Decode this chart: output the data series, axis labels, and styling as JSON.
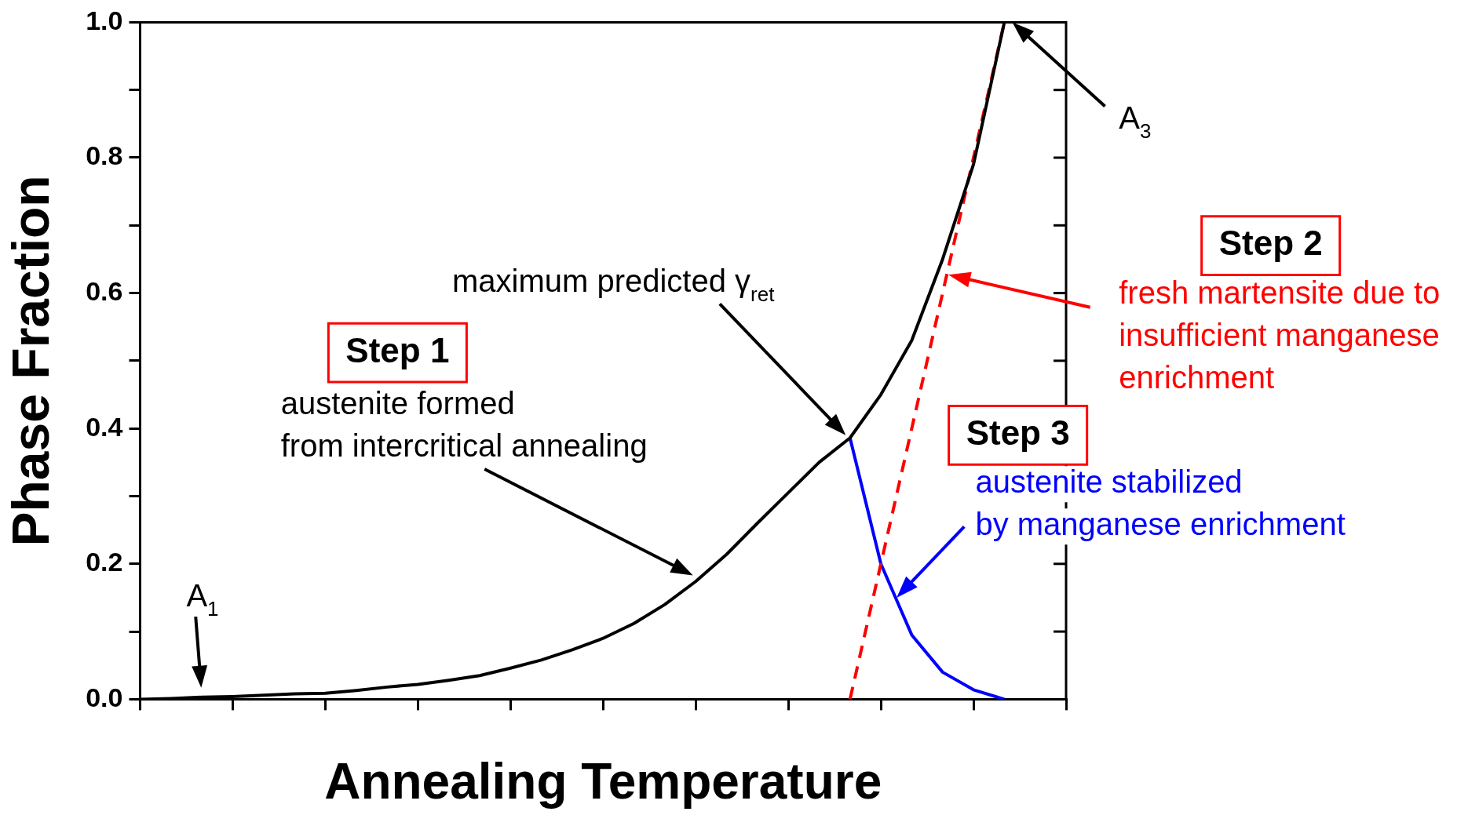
{
  "chart_data": {
    "type": "line",
    "xlabel": "Annealing Temperature",
    "ylabel": "Phase Fraction",
    "categories": [
      null,
      null,
      null,
      null,
      null,
      null,
      null,
      null,
      null,
      null,
      null,
      null,
      null,
      null,
      null,
      null,
      null,
      null,
      null,
      null,
      null,
      null,
      null,
      null,
      null,
      null,
      null,
      null,
      null,
      null,
      null
    ],
    "ylim": [
      0,
      1
    ],
    "yticks": [
      {
        "value": 0,
        "label": "0.0"
      },
      {
        "value": 0.1,
        "label": null
      },
      {
        "value": 0.2,
        "label": "0.2"
      },
      {
        "value": 0.3,
        "label": null
      },
      {
        "value": 0.4,
        "label": "0.4"
      },
      {
        "value": 0.5,
        "label": null
      },
      {
        "value": 0.6,
        "label": "0.6"
      },
      {
        "value": 0.7,
        "label": null
      },
      {
        "value": 0.8,
        "label": "0.8"
      },
      {
        "value": 0.9,
        "label": null
      },
      {
        "value": 1,
        "label": "1.0"
      }
    ],
    "marker": "none",
    "legend": false,
    "series": [
      {
        "color": "#000000",
        "line_style": "solid",
        "values": [
          0,
          0.001,
          0.003,
          0.004,
          0.006,
          0.008,
          0.009,
          0.013,
          0.018,
          0.022,
          0.028,
          0.035,
          0.046,
          0.058,
          0.073,
          0.09,
          0.112,
          0.14,
          0.174,
          0.214,
          0.26,
          0.305,
          0.35,
          0.386,
          0.45,
          0.53,
          0.65,
          0.79,
          1.0,
          null,
          null
        ]
      },
      {
        "color": "#ff0000",
        "line_style": "dashed",
        "values": [
          null,
          null,
          null,
          null,
          null,
          null,
          null,
          null,
          null,
          null,
          null,
          null,
          null,
          null,
          null,
          null,
          null,
          null,
          null,
          null,
          null,
          null,
          null,
          0,
          0.2,
          0.4,
          0.6,
          0.8,
          1.0,
          null,
          null
        ]
      },
      {
        "color": "#0000ff",
        "line_style": "solid",
        "values": [
          null,
          null,
          null,
          null,
          null,
          null,
          null,
          null,
          null,
          null,
          null,
          null,
          null,
          null,
          null,
          null,
          null,
          null,
          null,
          null,
          null,
          null,
          null,
          0.386,
          0.2,
          0.095,
          0.04,
          0.014,
          0,
          null,
          null
        ]
      }
    ],
    "annotations": [
      "A$_{1}$",
      "A$_{3}$",
      "maximum predicted γ$_{ret}$",
      "Step 1",
      "austenite formed\nfrom intercritical annealing",
      "Step 2",
      "fresh martensite due to\ninsufficient manganese\nenrichment",
      "Step 3",
      "austenite stabilized\nby manganese enrichment"
    ]
  }
}
